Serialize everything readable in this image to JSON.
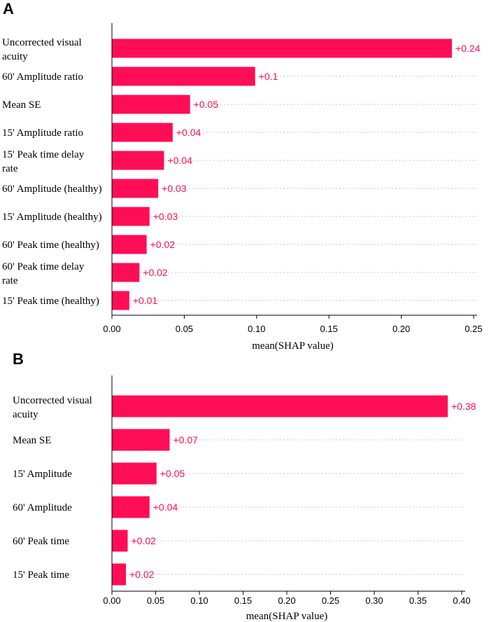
{
  "chart_data": [
    {
      "panel": "A",
      "type": "bar",
      "orientation": "horizontal",
      "categories": [
        [
          "Uncorrected visual",
          "acuity"
        ],
        [
          "60' Amplitude ratio"
        ],
        [
          "Mean SE"
        ],
        [
          "15' Amplitude ratio"
        ],
        [
          "15' Peak time delay",
          "rate"
        ],
        [
          "60' Amplitude (healthy)"
        ],
        [
          "15' Amplitude (healthy)"
        ],
        [
          "60' Peak time (healthy)"
        ],
        [
          "60' Peak time delay",
          "rate"
        ],
        [
          "15' Peak time (healthy)"
        ]
      ],
      "values": [
        0.235,
        0.099,
        0.054,
        0.042,
        0.036,
        0.032,
        0.026,
        0.024,
        0.019,
        0.012
      ],
      "value_labels": [
        "+0.24",
        "+0.1",
        "+0.05",
        "+0.04",
        "+0.04",
        "+0.03",
        "+0.03",
        "+0.02",
        "+0.02",
        "+0.01"
      ],
      "xticks": [
        "0.00",
        "0.05",
        "0.10",
        "0.15",
        "0.20",
        "0.25"
      ],
      "xlim": [
        0,
        0.25
      ],
      "xlabel": "mean(SHAP value)",
      "bar_color": "#ff0d57"
    },
    {
      "panel": "B",
      "type": "bar",
      "orientation": "horizontal",
      "categories": [
        [
          "Uncorrected visual",
          "acuity"
        ],
        [
          "Mean SE"
        ],
        [
          "15' Amplitude"
        ],
        [
          "60' Amplitude"
        ],
        [
          "60' Peak time"
        ],
        [
          "15' Peak time"
        ]
      ],
      "values": [
        0.384,
        0.066,
        0.051,
        0.043,
        0.018,
        0.016
      ],
      "value_labels": [
        "+0.38",
        "+0.07",
        "+0.05",
        "+0.04",
        "+0.02",
        "+0.02"
      ],
      "xticks": [
        "0.00",
        "0.05",
        "0.10",
        "0.15",
        "0.20",
        "0.25",
        "0.30",
        "0.35",
        "0.40"
      ],
      "xlim": [
        0,
        0.4
      ],
      "xlabel": "mean(SHAP value)",
      "bar_color": "#ff0d57"
    }
  ]
}
